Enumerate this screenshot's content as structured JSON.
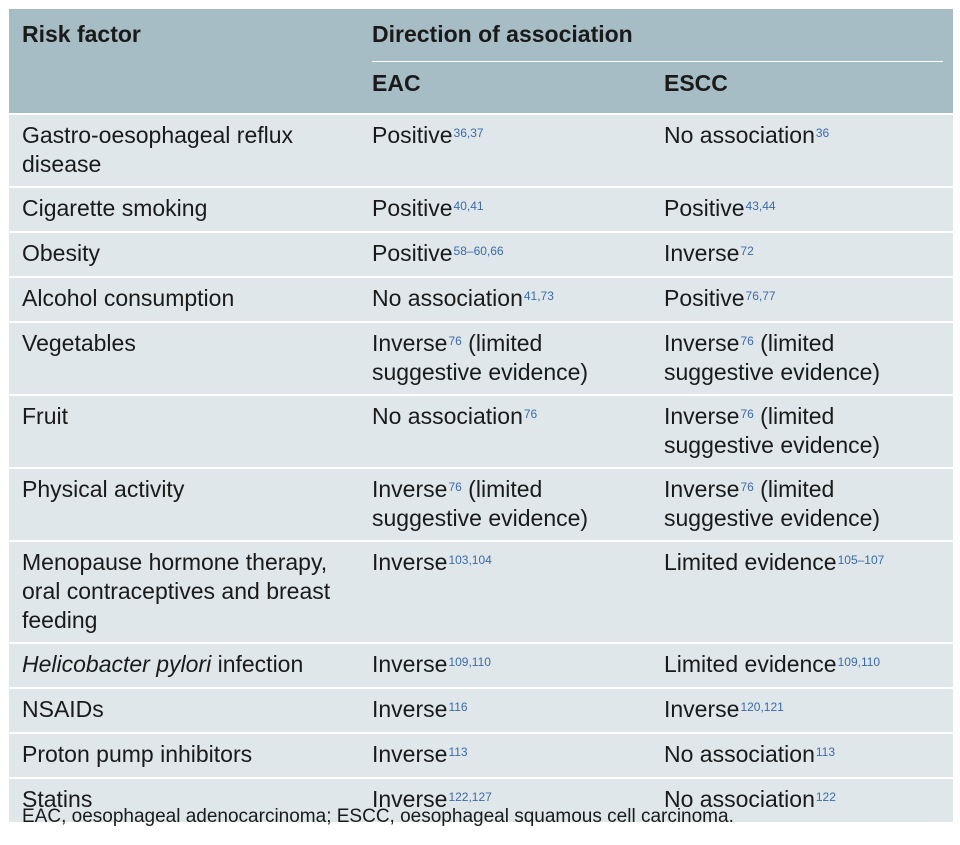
{
  "header": {
    "risk_factor": "Risk factor",
    "direction": "Direction of association",
    "eac": "EAC",
    "escc": "ESCC"
  },
  "rows": [
    {
      "factor": "Gastro-oesophageal reflux disease",
      "eac": {
        "text": "Positive",
        "refs": "36,37",
        "suffix": ""
      },
      "escc": {
        "text": "No association",
        "refs": "36",
        "suffix": ""
      }
    },
    {
      "factor": "Cigarette smoking",
      "eac": {
        "text": "Positive",
        "refs": "40,41",
        "suffix": ""
      },
      "escc": {
        "text": "Positive",
        "refs": "43,44",
        "suffix": ""
      }
    },
    {
      "factor": "Obesity",
      "eac": {
        "text": "Positive",
        "refs": "58–60,66",
        "suffix": ""
      },
      "escc": {
        "text": "Inverse",
        "refs": "72",
        "suffix": ""
      }
    },
    {
      "factor": "Alcohol consumption",
      "eac": {
        "text": "No association",
        "refs": "41,73",
        "suffix": ""
      },
      "escc": {
        "text": "Positive",
        "refs": "76,77",
        "suffix": ""
      }
    },
    {
      "factor": "Vegetables",
      "eac": {
        "text": "Inverse",
        "refs": "76",
        "suffix": " (limited suggestive evidence)"
      },
      "escc": {
        "text": "Inverse",
        "refs": "76",
        "suffix": " (limited suggestive evidence)"
      }
    },
    {
      "factor": "Fruit",
      "eac": {
        "text": "No association",
        "refs": "76",
        "suffix": ""
      },
      "escc": {
        "text": "Inverse",
        "refs": "76",
        "suffix": " (limited suggestive evidence)"
      }
    },
    {
      "factor": "Physical activity",
      "eac": {
        "text": "Inverse",
        "refs": "76",
        "suffix": " (limited suggestive evidence)"
      },
      "escc": {
        "text": "Inverse",
        "refs": "76",
        "suffix": " (limited suggestive evidence)"
      }
    },
    {
      "factor": "Menopause hormone therapy, oral contraceptives and breast feeding",
      "eac": {
        "text": "Inverse",
        "refs": "103,104",
        "suffix": ""
      },
      "escc": {
        "text": "Limited evidence",
        "refs": "105–107",
        "suffix": ""
      }
    },
    {
      "factor": "",
      "factor_italic": "Helicobacter pylori",
      "factor_rest": " infection",
      "eac": {
        "text": "Inverse",
        "refs": "109,110",
        "suffix": ""
      },
      "escc": {
        "text": "Limited evidence",
        "refs": "109,110",
        "suffix": ""
      }
    },
    {
      "factor": "NSAIDs",
      "eac": {
        "text": "Inverse",
        "refs": "116",
        "suffix": ""
      },
      "escc": {
        "text": "Inverse",
        "refs": "120,121",
        "suffix": ""
      }
    },
    {
      "factor": "Proton pump inhibitors",
      "eac": {
        "text": "Inverse",
        "refs": "113",
        "suffix": ""
      },
      "escc": {
        "text": "No association",
        "refs": "113",
        "suffix": ""
      }
    },
    {
      "factor": "Statins",
      "eac": {
        "text": "Inverse",
        "refs": "122,127",
        "suffix": ""
      },
      "escc": {
        "text": "No association",
        "refs": "122",
        "suffix": ""
      }
    }
  ],
  "footnote": "EAC, oesophageal adenocarcinoma; ESCC, oesophageal squamous cell carcinoma.",
  "colors": {
    "header_bg": "#a7bdc5",
    "row_bg": "#dfe7ea",
    "ref_blue": "#3d6aa8"
  }
}
